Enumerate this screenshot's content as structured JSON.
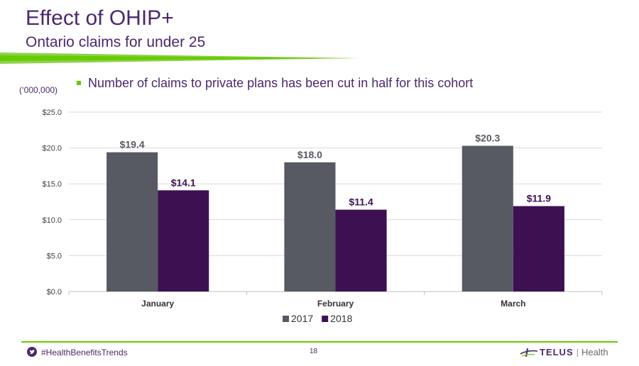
{
  "slide": {
    "title": "Effect of OHIP+",
    "subtitle": "Ontario claims for under 25",
    "unit_note": "(‘000,000)",
    "bullet": "Number of claims to private plans has been cut in half for this cohort",
    "hashtag": "#HealthBenefitsTrends",
    "page_number": "18",
    "brand": {
      "name": "TELUS",
      "separator": "|",
      "product": "Health"
    },
    "colors": {
      "accent_purple": "#4b286d",
      "accent_green": "#66cc00"
    },
    "icons": {
      "social": "twitter-icon",
      "logo": "telus-logo-icon"
    }
  },
  "chart_data": {
    "type": "bar",
    "categories": [
      "January",
      "February",
      "March"
    ],
    "series": [
      {
        "name": "2017",
        "values": [
          19.4,
          18.0,
          20.3
        ],
        "labels": [
          "$19.4",
          "$18.0",
          "$20.3"
        ],
        "color": "#575a63"
      },
      {
        "name": "2018",
        "values": [
          14.1,
          11.4,
          11.9
        ],
        "labels": [
          "$14.1",
          "$11.4",
          "$11.9"
        ],
        "color": "#3d1052"
      }
    ],
    "y_ticks": [
      0,
      5,
      10,
      15,
      20,
      25
    ],
    "y_tick_labels": [
      "$0.0",
      "$5.0",
      "$10.0",
      "$15.0",
      "$20.0",
      "$25.0"
    ],
    "ylim": [
      0,
      25
    ],
    "grid": true,
    "legend_position": "bottom"
  }
}
